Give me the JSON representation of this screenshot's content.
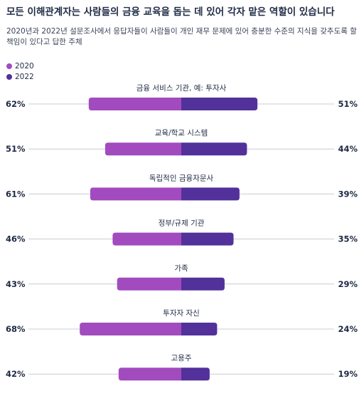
{
  "header": {
    "title": "모든 이해관계자는 사람들의 금융 교육을 돕는 데 있어 각자 맡은 역할이 있습니다",
    "subtitle": "2020년과 2022년 설문조사에서 응답자들이 사람들이 개인 재무 문제에 있어 충분한 수준의 지식을 갖추도록 할 책임이 있다고 답한 주체"
  },
  "colors": {
    "series_2020": "#a24bbf",
    "series_2022": "#52319b",
    "axis_line": "#c9ccd4"
  },
  "chart_data": {
    "type": "bar",
    "orientation": "horizontal-diverging",
    "title": "모든 이해관계자는 사람들의 금융 교육을 돕는 데 있어 각자 맡은 역할이 있습니다",
    "categories": [
      "금융 서비스 기관, 예: 투자사",
      "교육/학교 시스템",
      "독립적인 금융자문사",
      "정부/규제 기관",
      "가족",
      "투자자 자신",
      "고용주"
    ],
    "series": [
      {
        "name": "2020",
        "values": [
          62,
          51,
          61,
          46,
          43,
          68,
          42
        ],
        "labels": [
          "62%",
          "51%",
          "61%",
          "46%",
          "43%",
          "68%",
          "42%"
        ]
      },
      {
        "name": "2022",
        "values": [
          51,
          44,
          39,
          35,
          29,
          24,
          19
        ],
        "labels": [
          "51%",
          "44%",
          "39%",
          "35%",
          "29%",
          "24%",
          "19%"
        ]
      }
    ],
    "value_unit": "%",
    "legend_position": "top-left"
  }
}
